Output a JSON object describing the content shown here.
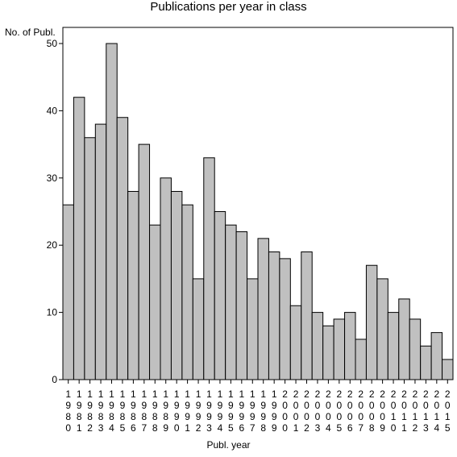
{
  "chart_data": {
    "type": "bar",
    "title": "Publications per year in class",
    "ylabel": "No. of Publ.",
    "xlabel": "Publ. year",
    "ylim": [
      0,
      50
    ],
    "yticks": [
      0,
      10,
      20,
      30,
      40,
      50
    ],
    "grid": false,
    "bar_color": "#c0c0c0",
    "categories": [
      "1980",
      "1981",
      "1982",
      "1983",
      "1984",
      "1985",
      "1986",
      "1987",
      "1988",
      "1989",
      "1990",
      "1991",
      "1992",
      "1993",
      "1994",
      "1995",
      "1996",
      "1997",
      "1998",
      "1999",
      "2000",
      "2001",
      "2002",
      "2003",
      "2004",
      "2005",
      "2006",
      "2007",
      "2008",
      "2009",
      "2010",
      "2011",
      "2012",
      "2013",
      "2014",
      "2015"
    ],
    "values": [
      26,
      42,
      36,
      38,
      50,
      39,
      28,
      35,
      23,
      30,
      28,
      26,
      15,
      33,
      25,
      23,
      22,
      15,
      21,
      19,
      18,
      11,
      19,
      10,
      8,
      9,
      10,
      6,
      17,
      15,
      10,
      12,
      9,
      5,
      7,
      3
    ]
  }
}
